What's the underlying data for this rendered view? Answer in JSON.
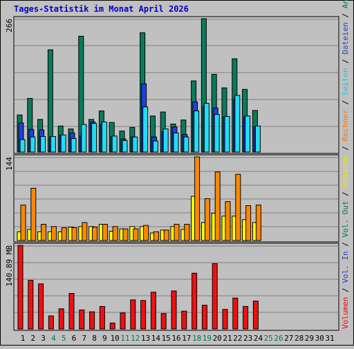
{
  "chart_data": {
    "type": "bar",
    "title": "Tages-Statistik im Monat April 2026",
    "x_labels": [
      "1",
      "2",
      "3",
      "4",
      "5",
      "6",
      "7",
      "8",
      "9",
      "10",
      "11",
      "12",
      "13",
      "14",
      "15",
      "16",
      "17",
      "18",
      "19",
      "20",
      "21",
      "22",
      "23",
      "24",
      "25",
      "26",
      "27",
      "28",
      "29",
      "30",
      "31"
    ],
    "weekend_days": [
      4,
      5,
      11,
      12,
      18,
      19,
      25,
      26
    ],
    "panels": [
      {
        "id": "hits",
        "max_label": "266",
        "ymax": 266,
        "series": [
          {
            "name": "Anfragen",
            "values": [
              74,
              107,
              65,
              204,
              52,
              46,
              231,
              65,
              82,
              59,
              42,
              49,
              238,
              72,
              80,
              56,
              64,
              142,
              266,
              155,
              128,
              186,
              125,
              83,
              0,
              0,
              0,
              0,
              0,
              0,
              0
            ]
          },
          {
            "name": "Dateien",
            "values": [
              58,
              45,
              44,
              30,
              33,
              38,
              32,
              60,
              55,
              30,
              26,
              30,
              136,
              30,
              40,
              50,
              35,
              100,
              90,
              88,
              70,
              105,
              70,
              50,
              0,
              0,
              0,
              0,
              0,
              0,
              0
            ]
          },
          {
            "name": "Seiten",
            "values": [
              25,
              30,
              31,
              31,
              34,
              27,
              55,
              57,
              60,
              32,
              23,
              30,
              90,
              22,
              46,
              38,
              30,
              82,
              97,
              75,
              71,
              113,
              72,
              52,
              0,
              0,
              0,
              0,
              0,
              0,
              0
            ]
          }
        ]
      },
      {
        "id": "visits",
        "max_label": "144",
        "ymax": 144,
        "series": [
          {
            "name": "Besuche",
            "values": [
              15,
              19,
              15,
              15,
              15,
              23,
              24,
              24,
              28,
              16,
              20,
              24,
              24,
              13,
              18,
              24,
              19,
              76,
              31,
              47,
              42,
              42,
              36,
              31,
              0,
              0,
              0,
              0,
              0,
              0,
              0
            ]
          },
          {
            "name": "Rechner",
            "values": [
              61,
              90,
              28,
              24,
              22,
              22,
              31,
              23,
              28,
              24,
              20,
              20,
              26,
              15,
              18,
              28,
              28,
              144,
              72,
              118,
              67,
              114,
              60,
              61,
              0,
              0,
              0,
              0,
              0,
              0,
              0
            ]
          }
        ]
      },
      {
        "id": "volume",
        "max_label": "140.89 MB",
        "ymax": 140.89,
        "series": [
          {
            "name": "Volumen",
            "values": [
              140.89,
              82,
              76,
              22,
              34,
              60,
              32,
              29,
              38,
              10,
              27,
              49,
              48,
              62,
              26,
              64,
              30,
              94,
              40,
              110,
              33,
              52,
              38,
              47,
              0,
              0,
              0,
              0,
              0,
              0,
              0
            ]
          }
        ]
      }
    ],
    "legend_right": [
      {
        "text": "Volumen",
        "color": "#ff0000"
      },
      {
        "text": " / ",
        "color": "#000000"
      },
      {
        "text": "Vol. In",
        "color": "#2244cc"
      },
      {
        "text": " / ",
        "color": "#000000"
      },
      {
        "text": "Vol. Out",
        "color": "#007750"
      },
      {
        "text": " / ",
        "color": "#000000"
      },
      {
        "text": "Besuche",
        "color": "#e8e800"
      },
      {
        "text": " / ",
        "color": "#000000"
      },
      {
        "text": "Rechner",
        "color": "#ff7700"
      },
      {
        "text": " / ",
        "color": "#000000"
      },
      {
        "text": "Seiten",
        "color": "#00d4f0"
      },
      {
        "text": " / ",
        "color": "#000000"
      },
      {
        "text": "Dateien",
        "color": "#2244cc"
      },
      {
        "text": " / ",
        "color": "#000000"
      },
      {
        "text": "Anfragen",
        "color": "#007750"
      }
    ],
    "colors": {
      "anfragen": "#0a7a5c",
      "dateien": "#1f3fe0",
      "seiten": "#22dcf5",
      "besuche": "#ffff00",
      "rechner": "#ff8800",
      "volumen": "#ee1111",
      "weekend_label": "#007750",
      "title": "#0000cc"
    }
  }
}
